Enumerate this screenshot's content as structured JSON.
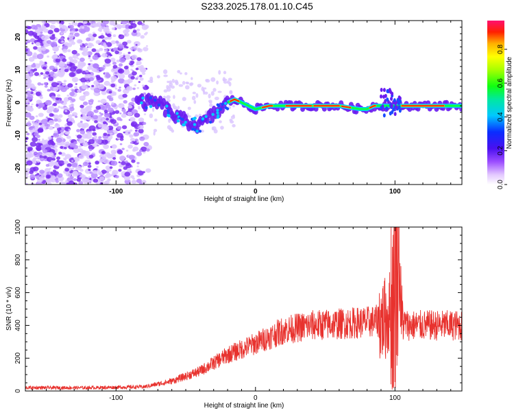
{
  "title": "S233.2025.178.01.10.C45",
  "chart_data": [
    {
      "type": "heatmap",
      "xlabel": "Height of straight line (km)",
      "ylabel": "Frequency (Hz)",
      "xlim": [
        -165,
        148
      ],
      "ylim": [
        -25,
        25
      ],
      "xticks": [
        -100,
        0,
        100
      ],
      "yticks": [
        -20,
        -10,
        0,
        10,
        20
      ],
      "colorbar": {
        "label": "Normalized spectral amplitude",
        "range": [
          0,
          1
        ],
        "ticks": [
          "0.0",
          "0.2",
          "0.4",
          "0.6",
          "0.8"
        ]
      },
      "ridge": {
        "description_values": "frequency (Hz) of the strongest spectral line vs height (km)",
        "x": [
          -85,
          -70,
          -55,
          -40,
          -25,
          -20,
          -15,
          -10,
          0,
          10,
          30,
          60,
          75,
          80,
          85,
          95,
          100,
          148
        ],
        "y": [
          0,
          0,
          -5,
          -7,
          -2,
          0,
          1,
          0,
          -2,
          -1,
          -1,
          -1,
          -2,
          -2,
          -1,
          -1,
          -1,
          -1
        ]
      }
    },
    {
      "type": "line",
      "xlabel": "Height of straight line (km)",
      "ylabel": "SNR (10 * v/v)",
      "xlim": [
        -165,
        148
      ],
      "ylim": [
        0,
        1000
      ],
      "xticks": [
        -100,
        0,
        100
      ],
      "yticks": [
        0,
        200,
        400,
        600,
        800,
        1000
      ],
      "line_color": "#e8322e",
      "series_envelope": {
        "x": [
          -165,
          -120,
          -80,
          -60,
          -40,
          -20,
          0,
          20,
          40,
          60,
          80,
          90,
          95,
          100,
          102,
          105,
          110,
          130,
          148
        ],
        "y": [
          20,
          20,
          25,
          60,
          120,
          220,
          290,
          370,
          400,
          410,
          420,
          430,
          450,
          600,
          900,
          420,
          400,
          400,
          400
        ]
      }
    }
  ]
}
